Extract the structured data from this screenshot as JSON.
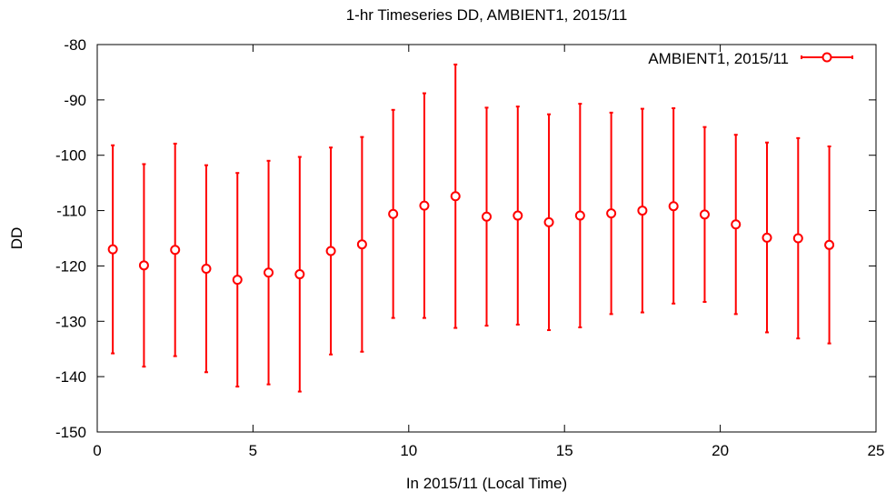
{
  "chart_data": {
    "type": "scatter",
    "title": "1-hr Timeseries DD, AMBIENT1, 2015/11",
    "xlabel": "In 2015/11 (Local Time)",
    "ylabel": "DD",
    "xlim": [
      0,
      25
    ],
    "ylim": [
      -150,
      -80
    ],
    "xticks": [
      0,
      5,
      10,
      15,
      20,
      25
    ],
    "yticks": [
      -150,
      -140,
      -130,
      -120,
      -110,
      -100,
      -90,
      -80
    ],
    "grid": false,
    "legend_position": "top-right",
    "series": [
      {
        "name": "AMBIENT1, 2015/11",
        "color": "#ff0000",
        "marker": "open-circle",
        "error_bars": true,
        "points": [
          {
            "x": 0.5,
            "y": -117.0,
            "ylow": -135.8,
            "yhigh": -98.2
          },
          {
            "x": 1.5,
            "y": -119.9,
            "ylow": -138.2,
            "yhigh": -101.6
          },
          {
            "x": 2.5,
            "y": -117.1,
            "ylow": -136.3,
            "yhigh": -97.9
          },
          {
            "x": 3.5,
            "y": -120.5,
            "ylow": -139.2,
            "yhigh": -101.8
          },
          {
            "x": 4.5,
            "y": -122.5,
            "ylow": -141.8,
            "yhigh": -103.2
          },
          {
            "x": 5.5,
            "y": -121.2,
            "ylow": -141.4,
            "yhigh": -101.0
          },
          {
            "x": 6.5,
            "y": -121.5,
            "ylow": -142.7,
            "yhigh": -100.3
          },
          {
            "x": 7.5,
            "y": -117.3,
            "ylow": -136.0,
            "yhigh": -98.6
          },
          {
            "x": 8.5,
            "y": -116.1,
            "ylow": -135.5,
            "yhigh": -96.7
          },
          {
            "x": 9.5,
            "y": -110.6,
            "ylow": -129.4,
            "yhigh": -91.8
          },
          {
            "x": 10.5,
            "y": -109.1,
            "ylow": -129.4,
            "yhigh": -88.8
          },
          {
            "x": 11.5,
            "y": -107.4,
            "ylow": -131.2,
            "yhigh": -83.6
          },
          {
            "x": 12.5,
            "y": -111.1,
            "ylow": -130.8,
            "yhigh": -91.4
          },
          {
            "x": 13.5,
            "y": -110.9,
            "ylow": -130.6,
            "yhigh": -91.2
          },
          {
            "x": 14.5,
            "y": -112.1,
            "ylow": -131.6,
            "yhigh": -92.6
          },
          {
            "x": 15.5,
            "y": -110.9,
            "ylow": -131.1,
            "yhigh": -90.7
          },
          {
            "x": 16.5,
            "y": -110.5,
            "ylow": -128.7,
            "yhigh": -92.3
          },
          {
            "x": 17.5,
            "y": -110.0,
            "ylow": -128.4,
            "yhigh": -91.6
          },
          {
            "x": 18.5,
            "y": -109.2,
            "ylow": -126.8,
            "yhigh": -91.5
          },
          {
            "x": 19.5,
            "y": -110.7,
            "ylow": -126.5,
            "yhigh": -94.9
          },
          {
            "x": 20.5,
            "y": -112.5,
            "ylow": -128.7,
            "yhigh": -96.3
          },
          {
            "x": 21.5,
            "y": -114.9,
            "ylow": -132.0,
            "yhigh": -97.7
          },
          {
            "x": 22.5,
            "y": -115.0,
            "ylow": -133.1,
            "yhigh": -96.9
          },
          {
            "x": 23.5,
            "y": -116.2,
            "ylow": -134.0,
            "yhigh": -98.4
          }
        ]
      }
    ]
  }
}
